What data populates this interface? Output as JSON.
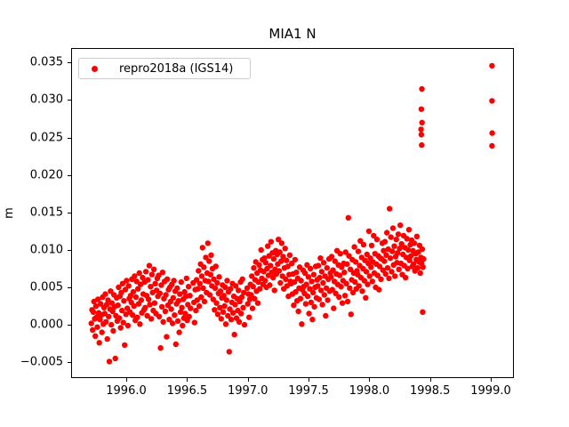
{
  "chart_data": {
    "type": "scatter",
    "title": "MIA1 N",
    "xlabel": "",
    "ylabel": "m",
    "marker_color": "#ff0000",
    "xlim": [
      1995.546,
      1999.19
    ],
    "ylim": [
      -0.00713,
      0.03694
    ],
    "xticks": [
      1996.0,
      1996.5,
      1997.0,
      1997.5,
      1998.0,
      1998.5,
      1999.0
    ],
    "xtick_labels": [
      "1996.0",
      "1996.5",
      "1997.0",
      "1997.5",
      "1998.0",
      "1998.5",
      "1999.0"
    ],
    "yticks": [
      -0.005,
      0.0,
      0.005,
      0.01,
      0.015,
      0.02,
      0.025,
      0.03,
      0.035
    ],
    "ytick_labels": [
      "−0.005",
      "0.000",
      "0.005",
      "0.010",
      "0.015",
      "0.020",
      "0.025",
      "0.030",
      "0.035"
    ],
    "grid": false,
    "legend_position": "upper-left",
    "series": [
      {
        "name": "repro2018a (IGS14)",
        "x_start": 1995.705,
        "x_step": 0.00548,
        "y_scale": 0.001,
        "y_units_in_array": "mm",
        "y": [
          0.3,
          2.1,
          -0.6,
          1.8,
          3.2,
          0.9,
          -1.4,
          2.6,
          1.1,
          -0.2,
          3.5,
          1.7,
          -2.3,
          0.8,
          2.9,
          1.4,
          -0.9,
          3.8,
          0.2,
          2.4,
          1.6,
          4.2,
          0.5,
          2.8,
          -1.8,
          3.4,
          1.2,
          -4.8,
          2.2,
          4.6,
          0.1,
          3.0,
          1.9,
          -0.7,
          4.1,
          2.5,
          -4.4,
          1.3,
          3.7,
          0.6,
          2.7,
          5.1,
          1.0,
          3.9,
          -0.3,
          4.4,
          2.0,
          5.6,
          0.4,
          3.3,
          -2.6,
          4.8,
          1.5,
          6.0,
          2.3,
          0.0,
          5.3,
          3.6,
          1.8,
          4.0,
          3.1,
          6.2,
          1.4,
          4.5,
          2.6,
          6.6,
          0.7,
          3.8,
          5.9,
          1.1,
          4.9,
          2.9,
          7.0,
          0.2,
          5.5,
          3.4,
          1.7,
          6.4,
          4.2,
          2.1,
          5.8,
          2.4,
          7.2,
          4.0,
          1.3,
          6.1,
          3.5,
          8.0,
          2.8,
          5.2,
          0.9,
          6.8,
          4.4,
          2.0,
          7.5,
          3.0,
          5.6,
          1.6,
          4.7,
          6.3,
          3.9,
          6.7,
          1.2,
          4.3,
          -3.0,
          5.4,
          2.5,
          7.1,
          0.5,
          3.6,
          5.9,
          1.9,
          4.1,
          -1.5,
          6.2,
          2.7,
          4.8,
          0.8,
          5.1,
          3.2,
          2.2,
          5.5,
          0.3,
          3.7,
          6.0,
          1.4,
          4.6,
          -2.5,
          2.9,
          5.0,
          0.6,
          3.3,
          -0.9,
          4.2,
          1.8,
          5.8,
          2.4,
          0.0,
          3.5,
          1.0,
          4.5,
          1.6,
          3.9,
          6.3,
          0.7,
          2.8,
          5.2,
          1.2,
          4.0,
          2.3,
          null,
          null,
          null,
          5.7,
          3.1,
          0.4,
          4.8,
          2.0,
          6.1,
          3.4,
          4.9,
          7.3,
          2.6,
          5.6,
          8.2,
          3.8,
          6.6,
          10.4,
          5.0,
          7.8,
          3.2,
          6.0,
          9.1,
          4.4,
          7.0,
          11.0,
          5.9,
          8.6,
          4.1,
          6.8,
          9.4,
          5.3,
          7.6,
          3.5,
          6.2,
          2.1,
          5.0,
          7.9,
          3.0,
          5.7,
          1.5,
          4.3,
          6.5,
          2.4,
          4.6,
          0.9,
          3.7,
          5.4,
          1.8,
          4.0,
          2.6,
          5.1,
          0.2,
          3.4,
          6.0,
          1.3,
          4.5,
          -3.5,
          2.2,
          4.9,
          0.8,
          3.1,
          5.6,
          1.7,
          3.9,
          -1.2,
          2.8,
          5.3,
          1.0,
          3.6,
          2.0,
          4.7,
          0.5,
          3.2,
          5.8,
          1.6,
          3.8,
          6.2,
          2.4,
          4.4,
          0.1,
          null,
          null,
          null,
          5.0,
          2.9,
          4.2,
          1.1,
          3.5,
          5.5,
          4.1,
          6.6,
          2.3,
          5.2,
          7.7,
          3.6,
          6.1,
          8.5,
          4.6,
          7.0,
          3.0,
          5.8,
          8.1,
          4.9,
          7.4,
          10.1,
          6.3,
          8.8,
          5.5,
          7.2,
          9.0,
          6.0,
          8.4,
          5.1,
          7.6,
          10.6,
          6.7,
          9.3,
          5.4,
          8.0,
          11.2,
          7.1,
          9.7,
          6.4,
          8.9,
          4.7,
          7.5,
          10.0,
          6.9,
          9.5,
          8.2,
          11.5,
          7.3,
          9.8,
          5.7,
          8.6,
          11.0,
          6.6,
          9.2,
          4.9,
          7.7,
          10.3,
          6.2,
          8.7,
          5.3,
          7.9,
          3.9,
          6.8,
          9.4,
          5.9,
          5.6,
          8.3,
          4.2,
          6.9,
          2.7,
          5.8,
          8.8,
          4.5,
          7.1,
          3.3,
          6.3,
          1.9,
          5.0,
          7.8,
          3.6,
          6.0,
          0.2,
          4.8,
          7.4,
          5.2,
          4.3,
          7.0,
          2.9,
          5.5,
          8.1,
          3.9,
          6.5,
          1.6,
          4.9,
          7.6,
          3.1,
          5.9,
          0.8,
          4.4,
          6.8,
          2.5,
          5.1,
          7.9,
          3.7,
          6.1,
          5.3,
          8.0,
          3.5,
          6.4,
          9.0,
          4.7,
          7.2,
          2.8,
          5.7,
          8.4,
          4.1,
          6.6,
          1.3,
          5.0,
          7.7,
          3.4,
          6.2,
          8.9,
          4.6,
          7.0,
          6.5,
          9.2,
          4.8,
          7.4,
          2.3,
          5.9,
          8.6,
          4.3,
          6.9,
          10.0,
          5.5,
          8.1,
          3.8,
          6.7,
          9.6,
          5.2,
          7.8,
          3.0,
          6.0,
          8.3,
          7.1,
          4.0,
          9.8,
          5.6,
          8.2,
          3.2,
          14.4,
          9.3,
          5.0,
          7.5,
          1.5,
          6.1,
          8.8,
          4.4,
          7.0,
          10.5,
          5.8,
          8.5,
          4.9,
          7.3,
          6.8,
          9.9,
          5.3,
          8.0,
          11.3,
          6.4,
          9.1,
          4.6,
          7.6,
          10.8,
          6.0,
          8.7,
          3.7,
          7.2,
          9.5,
          5.5,
          8.3,
          12.6,
          6.6,
          9.0,
          7.8,
          10.7,
          5.9,
          8.5,
          12.0,
          7.0,
          9.6,
          5.1,
          8.2,
          11.5,
          6.7,
          9.3,
          4.8,
          7.9,
          9.0,
          6.2,
          8.9,
          11.0,
          7.4,
          10.0,
          8.6,
          11.2,
          6.9,
          9.4,
          12.4,
          7.7,
          10.2,
          6.3,
          15.6,
          9.0,
          11.8,
          7.2,
          9.9,
          13.0,
          8.1,
          10.6,
          6.6,
          9.2,
          11.5,
          8.4,
          9.7,
          12.2,
          7.5,
          10.3,
          13.4,
          8.3,
          10.9,
          6.8,
          9.5,
          12.0,
          8.0,
          10.4,
          6.4,
          9.1,
          11.6,
          7.6,
          10.1,
          12.8,
          8.7,
          10.8,
          9.3,
          11.4,
          7.9,
          10.0,
          8.2,
          11.0,
          7.3,
          9.6,
          8.8,
          11.9,
          7.7,
          9.8,
          8.5,
          10.7,
          7.0,
          9.1,
          8.3,
          10.2,
          7.8,
          8.9
        ],
        "extra_points": [
          [
            1998.425,
            31.6
          ],
          [
            1998.421,
            28.9
          ],
          [
            1998.427,
            27.1
          ],
          [
            1998.419,
            26.2
          ],
          [
            1998.421,
            25.5
          ],
          [
            1998.424,
            24.1
          ],
          [
            1998.432,
            1.8
          ],
          [
            1999.003,
            34.7
          ],
          [
            1999.003,
            30.0
          ],
          [
            1999.004,
            25.7
          ],
          [
            1999.003,
            24.0
          ]
        ]
      }
    ]
  }
}
